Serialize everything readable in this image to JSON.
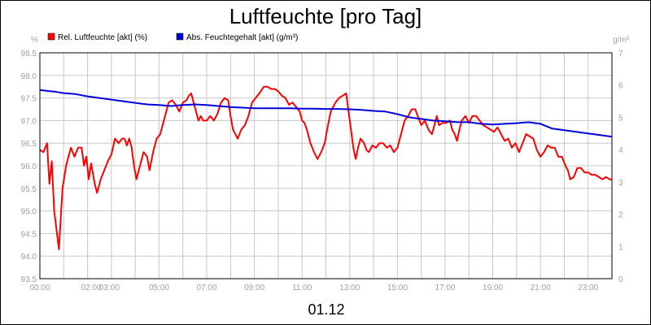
{
  "chart_data": {
    "type": "line",
    "title": "Luftfeuchte [pro Tag]",
    "date_label": "01.12",
    "y_left_unit": "%",
    "y_right_unit": "g/m³",
    "y_left_range": [
      93.5,
      98.5
    ],
    "y_right_range": [
      0,
      7
    ],
    "y_left_ticks": [
      "93.5",
      "94.0",
      "94.5",
      "95.0",
      "95.5",
      "96.0",
      "96.5",
      "97.0",
      "97.5",
      "98.0",
      "98.5"
    ],
    "y_right_ticks": [
      "0",
      "1",
      "2",
      "3",
      "4",
      "5",
      "6",
      "7"
    ],
    "x_range": [
      0,
      24
    ],
    "x_ticks": [
      {
        "h": 0,
        "label": "00:00"
      },
      {
        "h": 2,
        "label": "02:00"
      },
      {
        "h": 3,
        "label": "03:00"
      },
      {
        "h": 5,
        "label": "05:00"
      },
      {
        "h": 7,
        "label": "07:00"
      },
      {
        "h": 9,
        "label": "09:00"
      },
      {
        "h": 11,
        "label": "11:00"
      },
      {
        "h": 13,
        "label": "13:00"
      },
      {
        "h": 15,
        "label": "15:00"
      },
      {
        "h": 17,
        "label": "17:00"
      },
      {
        "h": 19,
        "label": "19:00"
      },
      {
        "h": 21,
        "label": "21:00"
      },
      {
        "h": 23,
        "label": "23:00"
      }
    ],
    "grid": true,
    "legend_placement": "top-left",
    "series": [
      {
        "name": "Rel. Luftfeuchte [akt] (%)",
        "axis": "left",
        "color": "#ff0000",
        "points": [
          [
            0.0,
            96.35
          ],
          [
            0.15,
            96.3
          ],
          [
            0.3,
            96.5
          ],
          [
            0.4,
            95.6
          ],
          [
            0.5,
            96.1
          ],
          [
            0.6,
            95.0
          ],
          [
            0.8,
            94.15
          ],
          [
            0.95,
            95.5
          ],
          [
            1.1,
            96.0
          ],
          [
            1.3,
            96.4
          ],
          [
            1.45,
            96.2
          ],
          [
            1.6,
            96.4
          ],
          [
            1.75,
            96.4
          ],
          [
            1.85,
            96.0
          ],
          [
            1.95,
            96.2
          ],
          [
            2.05,
            95.7
          ],
          [
            2.15,
            96.05
          ],
          [
            2.3,
            95.6
          ],
          [
            2.4,
            95.4
          ],
          [
            2.55,
            95.7
          ],
          [
            2.7,
            95.9
          ],
          [
            2.85,
            96.1
          ],
          [
            3.0,
            96.25
          ],
          [
            3.15,
            96.6
          ],
          [
            3.3,
            96.5
          ],
          [
            3.45,
            96.6
          ],
          [
            3.55,
            96.6
          ],
          [
            3.65,
            96.45
          ],
          [
            3.75,
            96.6
          ],
          [
            3.85,
            96.4
          ],
          [
            3.95,
            96.0
          ],
          [
            4.05,
            95.7
          ],
          [
            4.2,
            96.0
          ],
          [
            4.35,
            96.3
          ],
          [
            4.5,
            96.2
          ],
          [
            4.6,
            95.9
          ],
          [
            4.75,
            96.3
          ],
          [
            4.9,
            96.6
          ],
          [
            5.05,
            96.7
          ],
          [
            5.2,
            97.0
          ],
          [
            5.4,
            97.4
          ],
          [
            5.55,
            97.45
          ],
          [
            5.7,
            97.35
          ],
          [
            5.85,
            97.2
          ],
          [
            6.0,
            97.4
          ],
          [
            6.15,
            97.45
          ],
          [
            6.25,
            97.55
          ],
          [
            6.35,
            97.6
          ],
          [
            6.45,
            97.4
          ],
          [
            6.55,
            97.2
          ],
          [
            6.65,
            97.0
          ],
          [
            6.75,
            97.1
          ],
          [
            6.85,
            97.0
          ],
          [
            7.0,
            97.0
          ],
          [
            7.15,
            97.1
          ],
          [
            7.3,
            97.0
          ],
          [
            7.45,
            97.15
          ],
          [
            7.6,
            97.4
          ],
          [
            7.75,
            97.5
          ],
          [
            7.9,
            97.45
          ],
          [
            8.0,
            97.1
          ],
          [
            8.1,
            96.8
          ],
          [
            8.2,
            96.7
          ],
          [
            8.3,
            96.6
          ],
          [
            8.45,
            96.8
          ],
          [
            8.6,
            96.9
          ],
          [
            8.75,
            97.1
          ],
          [
            8.9,
            97.4
          ],
          [
            9.05,
            97.5
          ],
          [
            9.2,
            97.6
          ],
          [
            9.4,
            97.75
          ],
          [
            9.55,
            97.75
          ],
          [
            9.7,
            97.7
          ],
          [
            9.85,
            97.7
          ],
          [
            10.0,
            97.65
          ],
          [
            10.15,
            97.55
          ],
          [
            10.3,
            97.5
          ],
          [
            10.45,
            97.35
          ],
          [
            10.6,
            97.4
          ],
          [
            10.75,
            97.3
          ],
          [
            10.9,
            97.2
          ],
          [
            11.0,
            97.0
          ],
          [
            11.1,
            96.95
          ],
          [
            11.2,
            96.8
          ],
          [
            11.35,
            96.5
          ],
          [
            11.5,
            96.3
          ],
          [
            11.65,
            96.15
          ],
          [
            11.8,
            96.3
          ],
          [
            11.95,
            96.5
          ],
          [
            12.05,
            96.8
          ],
          [
            12.2,
            97.2
          ],
          [
            12.4,
            97.4
          ],
          [
            12.55,
            97.5
          ],
          [
            12.7,
            97.55
          ],
          [
            12.85,
            97.6
          ],
          [
            12.95,
            97.2
          ],
          [
            13.05,
            96.8
          ],
          [
            13.15,
            96.4
          ],
          [
            13.25,
            96.15
          ],
          [
            13.35,
            96.4
          ],
          [
            13.45,
            96.6
          ],
          [
            13.6,
            96.5
          ],
          [
            13.7,
            96.35
          ],
          [
            13.8,
            96.3
          ],
          [
            13.95,
            96.45
          ],
          [
            14.1,
            96.4
          ],
          [
            14.25,
            96.5
          ],
          [
            14.4,
            96.5
          ],
          [
            14.55,
            96.4
          ],
          [
            14.7,
            96.45
          ],
          [
            14.85,
            96.3
          ],
          [
            15.0,
            96.4
          ],
          [
            15.15,
            96.7
          ],
          [
            15.3,
            97.0
          ],
          [
            15.45,
            97.1
          ],
          [
            15.6,
            97.25
          ],
          [
            15.75,
            97.25
          ],
          [
            15.85,
            97.1
          ],
          [
            16.0,
            96.9
          ],
          [
            16.15,
            97.0
          ],
          [
            16.3,
            96.8
          ],
          [
            16.45,
            96.7
          ],
          [
            16.55,
            96.9
          ],
          [
            16.65,
            97.1
          ],
          [
            16.75,
            96.9
          ],
          [
            16.9,
            96.95
          ],
          [
            17.05,
            96.95
          ],
          [
            17.2,
            97.0
          ],
          [
            17.3,
            96.8
          ],
          [
            17.4,
            96.7
          ],
          [
            17.5,
            96.55
          ],
          [
            17.6,
            96.8
          ],
          [
            17.7,
            97.0
          ],
          [
            17.85,
            97.1
          ],
          [
            18.0,
            96.95
          ],
          [
            18.15,
            97.1
          ],
          [
            18.3,
            97.1
          ],
          [
            18.45,
            97.0
          ],
          [
            18.6,
            96.9
          ],
          [
            18.75,
            96.85
          ],
          [
            18.9,
            96.8
          ],
          [
            19.05,
            96.75
          ],
          [
            19.2,
            96.85
          ],
          [
            19.35,
            96.7
          ],
          [
            19.5,
            96.55
          ],
          [
            19.65,
            96.6
          ],
          [
            19.8,
            96.4
          ],
          [
            19.95,
            96.5
          ],
          [
            20.1,
            96.3
          ],
          [
            20.25,
            96.5
          ],
          [
            20.4,
            96.7
          ],
          [
            20.55,
            96.65
          ],
          [
            20.7,
            96.6
          ],
          [
            20.85,
            96.35
          ],
          [
            21.0,
            96.2
          ],
          [
            21.15,
            96.3
          ],
          [
            21.3,
            96.45
          ],
          [
            21.45,
            96.4
          ],
          [
            21.6,
            96.4
          ],
          [
            21.75,
            96.2
          ],
          [
            21.9,
            96.2
          ],
          [
            22.05,
            96.0
          ],
          [
            22.15,
            95.9
          ],
          [
            22.25,
            95.7
          ],
          [
            22.4,
            95.75
          ],
          [
            22.55,
            95.95
          ],
          [
            22.7,
            95.95
          ],
          [
            22.85,
            95.85
          ],
          [
            23.0,
            95.85
          ],
          [
            23.15,
            95.8
          ],
          [
            23.3,
            95.8
          ],
          [
            23.45,
            95.75
          ],
          [
            23.6,
            95.7
          ],
          [
            23.75,
            95.75
          ],
          [
            23.9,
            95.7
          ],
          [
            24.0,
            95.7
          ]
        ]
      },
      {
        "name": "Abs. Feuchtegehalt [akt] (g/m³)",
        "axis": "right",
        "color": "#0000dd",
        "points": [
          [
            0.0,
            5.85
          ],
          [
            0.3,
            5.82
          ],
          [
            0.6,
            5.8
          ],
          [
            1.0,
            5.75
          ],
          [
            1.5,
            5.72
          ],
          [
            2.0,
            5.65
          ],
          [
            2.5,
            5.6
          ],
          [
            3.0,
            5.55
          ],
          [
            3.5,
            5.5
          ],
          [
            4.0,
            5.45
          ],
          [
            4.5,
            5.4
          ],
          [
            5.0,
            5.38
          ],
          [
            5.5,
            5.35
          ],
          [
            6.0,
            5.38
          ],
          [
            6.5,
            5.4
          ],
          [
            7.0,
            5.38
          ],
          [
            7.5,
            5.35
          ],
          [
            8.0,
            5.32
          ],
          [
            8.5,
            5.3
          ],
          [
            9.0,
            5.28
          ],
          [
            9.5,
            5.28
          ],
          [
            10.0,
            5.28
          ],
          [
            10.5,
            5.28
          ],
          [
            11.0,
            5.27
          ],
          [
            11.5,
            5.27
          ],
          [
            12.0,
            5.26
          ],
          [
            12.5,
            5.26
          ],
          [
            13.0,
            5.25
          ],
          [
            13.5,
            5.23
          ],
          [
            14.0,
            5.2
          ],
          [
            14.5,
            5.18
          ],
          [
            15.0,
            5.1
          ],
          [
            15.5,
            5.0
          ],
          [
            16.0,
            4.95
          ],
          [
            16.5,
            4.9
          ],
          [
            17.0,
            4.88
          ],
          [
            17.5,
            4.85
          ],
          [
            18.0,
            4.85
          ],
          [
            18.5,
            4.8
          ],
          [
            19.0,
            4.78
          ],
          [
            19.5,
            4.8
          ],
          [
            20.0,
            4.82
          ],
          [
            20.5,
            4.85
          ],
          [
            21.0,
            4.8
          ],
          [
            21.5,
            4.65
          ],
          [
            22.0,
            4.6
          ],
          [
            22.5,
            4.55
          ],
          [
            23.0,
            4.5
          ],
          [
            23.5,
            4.45
          ],
          [
            24.0,
            4.4
          ]
        ]
      }
    ]
  }
}
